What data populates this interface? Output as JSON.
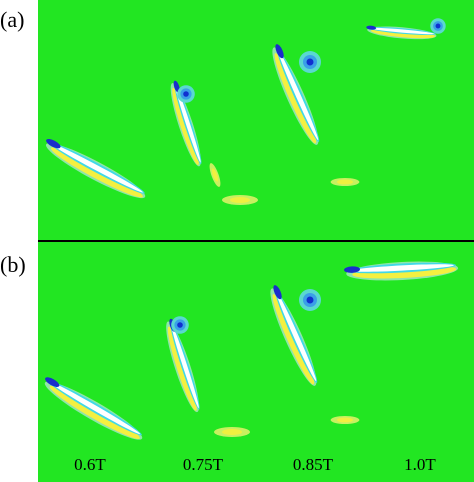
{
  "panels": [
    {
      "label": "(a)"
    },
    {
      "label": "(b)"
    }
  ],
  "time_labels": [
    "0.6T",
    "0.75T",
    "0.85T",
    "1.0T"
  ]
}
